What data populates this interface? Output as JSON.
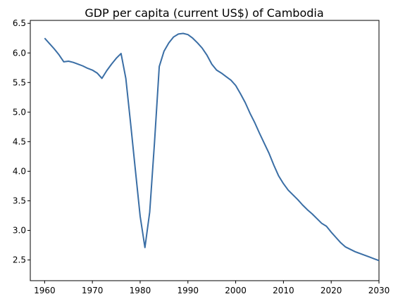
{
  "chart_data": {
    "type": "line",
    "title": "GDP per capita (current US$) of Cambodia",
    "xlabel": "",
    "ylabel": "",
    "xlim": [
      1957,
      2030
    ],
    "ylim": [
      2.15,
      6.55
    ],
    "xticks": [
      1960,
      1970,
      1980,
      1990,
      2000,
      2010,
      2020,
      2030
    ],
    "yticks": [
      2.5,
      3.0,
      3.5,
      4.0,
      4.5,
      5.0,
      5.5,
      6.0,
      6.5
    ],
    "grid": false,
    "legend": "none",
    "series": [
      {
        "color": "#3a6ea5",
        "points": [
          [
            1960,
            6.25
          ],
          [
            1961,
            6.16
          ],
          [
            1962,
            6.07
          ],
          [
            1963,
            5.97
          ],
          [
            1964,
            5.85
          ],
          [
            1965,
            5.86
          ],
          [
            1966,
            5.84
          ],
          [
            1967,
            5.81
          ],
          [
            1968,
            5.78
          ],
          [
            1969,
            5.74
          ],
          [
            1970,
            5.71
          ],
          [
            1971,
            5.66
          ],
          [
            1972,
            5.57
          ],
          [
            1973,
            5.7
          ],
          [
            1974,
            5.81
          ],
          [
            1975,
            5.91
          ],
          [
            1976,
            5.99
          ],
          [
            1977,
            5.57
          ],
          [
            1978,
            4.81
          ],
          [
            1979,
            4.02
          ],
          [
            1980,
            3.24
          ],
          [
            1981,
            2.71
          ],
          [
            1982,
            3.31
          ],
          [
            1983,
            4.48
          ],
          [
            1984,
            5.77
          ],
          [
            1985,
            6.03
          ],
          [
            1986,
            6.17
          ],
          [
            1987,
            6.27
          ],
          [
            1988,
            6.32
          ],
          [
            1989,
            6.33
          ],
          [
            1990,
            6.31
          ],
          [
            1991,
            6.25
          ],
          [
            1992,
            6.17
          ],
          [
            1993,
            6.08
          ],
          [
            1994,
            5.96
          ],
          [
            1995,
            5.81
          ],
          [
            1996,
            5.71
          ],
          [
            1997,
            5.66
          ],
          [
            1998,
            5.6
          ],
          [
            1999,
            5.54
          ],
          [
            2000,
            5.45
          ],
          [
            2001,
            5.31
          ],
          [
            2002,
            5.16
          ],
          [
            2003,
            4.98
          ],
          [
            2004,
            4.82
          ],
          [
            2005,
            4.64
          ],
          [
            2006,
            4.47
          ],
          [
            2007,
            4.3
          ],
          [
            2008,
            4.1
          ],
          [
            2009,
            3.92
          ],
          [
            2010,
            3.79
          ],
          [
            2011,
            3.68
          ],
          [
            2012,
            3.6
          ],
          [
            2013,
            3.52
          ],
          [
            2014,
            3.43
          ],
          [
            2015,
            3.35
          ],
          [
            2016,
            3.28
          ],
          [
            2017,
            3.2
          ],
          [
            2018,
            3.12
          ],
          [
            2019,
            3.07
          ],
          [
            2020,
            2.97
          ],
          [
            2021,
            2.88
          ],
          [
            2022,
            2.79
          ],
          [
            2023,
            2.72
          ],
          [
            2024,
            2.68
          ],
          [
            2025,
            2.64
          ],
          [
            2026,
            2.61
          ],
          [
            2027,
            2.58
          ],
          [
            2028,
            2.55
          ],
          [
            2029,
            2.52
          ],
          [
            2030,
            2.49
          ]
        ]
      },
      {
        "color": "#ff0000",
        "points": []
      }
    ]
  }
}
